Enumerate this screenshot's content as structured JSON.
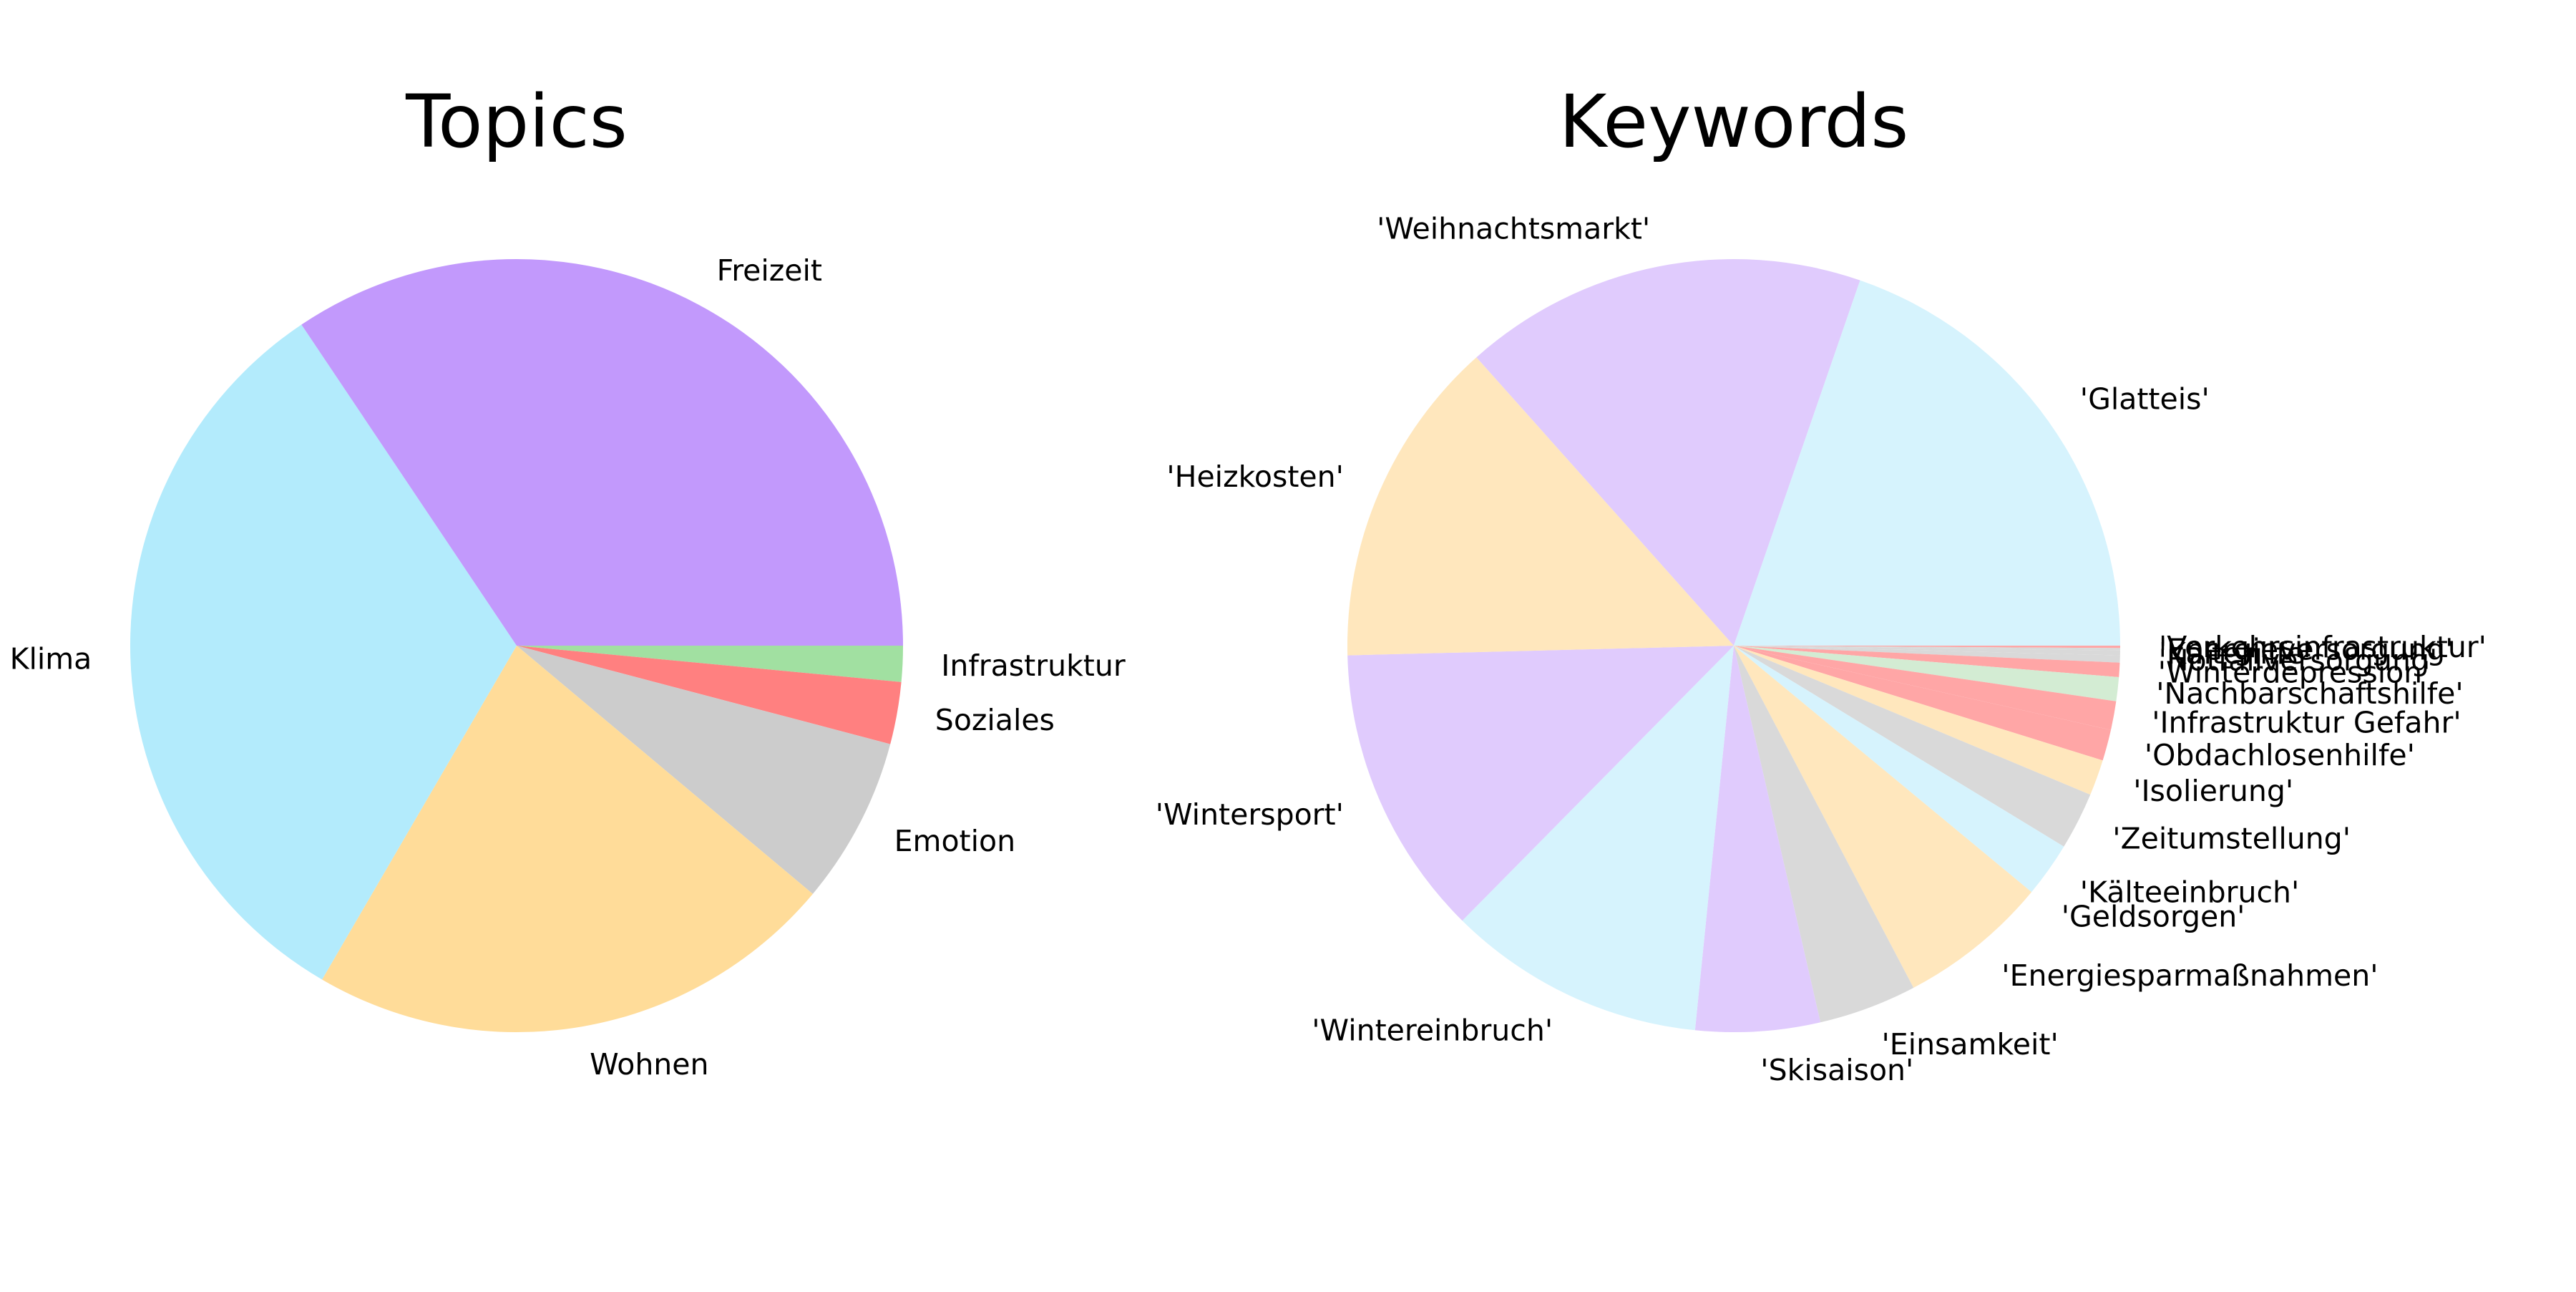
{
  "chart_data": [
    {
      "type": "pie",
      "title": "Topics",
      "start_angle_deg": 0,
      "direction": "counterclockwise",
      "slices": [
        {
          "label": "Freizeit",
          "value": 34.4,
          "color": "#c299fc"
        },
        {
          "label": "Klima",
          "value": 32.2,
          "color": "#b3ebfc"
        },
        {
          "label": "Wohnen",
          "value": 22.3,
          "color": "#ffdc99"
        },
        {
          "label": "Emotion",
          "value": 7.0,
          "color": "#cccccc"
        },
        {
          "label": "Soziales",
          "value": 2.6,
          "color": "#ff8080"
        },
        {
          "label": "Infrastruktur",
          "value": 1.5,
          "color": "#a1e0a1"
        }
      ]
    },
    {
      "type": "pie",
      "title": "Keywords",
      "start_angle_deg": 0,
      "direction": "counterclockwise",
      "slices": [
        {
          "label": "'Glatteis'",
          "value": 19.7,
          "color": "#d6f3fd"
        },
        {
          "label": "'Weihnachtsmarkt'",
          "value": 16.9,
          "color": "#e0cbfd"
        },
        {
          "label": "'Heizkosten'",
          "value": 13.8,
          "color": "#ffe7bd"
        },
        {
          "label": "'Wintersport'",
          "value": 12.2,
          "color": "#e0cbfd"
        },
        {
          "label": "'Wintereinbruch'",
          "value": 10.8,
          "color": "#d6f3fd"
        },
        {
          "label": "'Skisaison'",
          "value": 5.2,
          "color": "#e0cbfd"
        },
        {
          "label": "'Einsamkeit'",
          "value": 4.1,
          "color": "#d9d9d9"
        },
        {
          "label": "'Energiesparmaßnahmen'",
          "value": 6.3,
          "color": "#ffe7bd"
        },
        {
          "label": "'Geldsorgen'",
          "value": 0.0,
          "color": "#ffe7bd"
        },
        {
          "label": "'Kälteeinbruch'",
          "value": 2.3,
          "color": "#d6f3fd"
        },
        {
          "label": "'Zeitumstellung'",
          "value": 2.4,
          "color": "#d9d9d9"
        },
        {
          "label": "'Isolierung'",
          "value": 1.5,
          "color": "#ffe7bd"
        },
        {
          "label": "'Obdachlosenhilfe'",
          "value": 1.3,
          "color": "#ffa6a6"
        },
        {
          "label": "'Infrastruktur Gefahr'",
          "value": 1.2,
          "color": "#ffa6a6"
        },
        {
          "label": "'Nachbarschaftshilfe'",
          "value": 1.0,
          "color": "#d3ecd3"
        },
        {
          "label": "'Winterdepression'",
          "value": 0.6,
          "color": "#ffa6a6"
        },
        {
          "label": "'Notfallversorgung'",
          "value": 0.3,
          "color": "#d9d9d9"
        },
        {
          "label": "'Kältehilfe'",
          "value": 0.2,
          "color": "#d9d9d9"
        },
        {
          "label": "'Energieversorgung'",
          "value": 0.1,
          "color": "#d9d9d9"
        },
        {
          "label": "'Verkehrsinfrastruktur'",
          "value": 0.1,
          "color": "#ffa6a6"
        }
      ]
    }
  ]
}
